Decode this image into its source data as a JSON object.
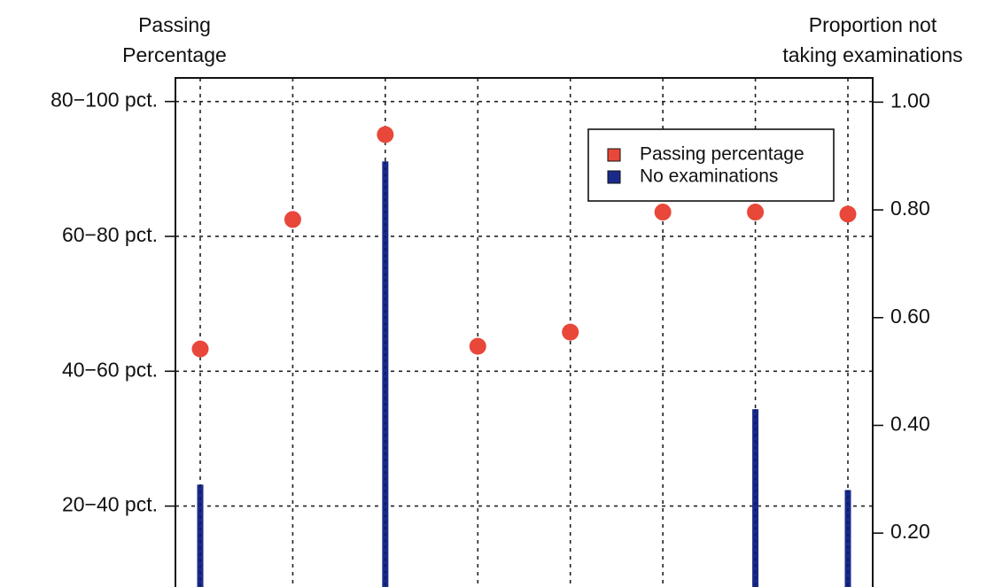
{
  "chart_data": {
    "type": "dual_point_bar",
    "ylabel": [
      "Passing",
      "Percentage"
    ],
    "y2label": [
      "Proportion not",
      "taking examinations"
    ],
    "categories": [
      null,
      null,
      null,
      null,
      null,
      null,
      null,
      null
    ],
    "series": [
      {
        "name": "Passing percentage",
        "color": "#e8473a",
        "type": "point",
        "values": [
          53.3,
          72.5,
          85.1,
          53.7,
          55.8,
          73.6,
          73.6,
          73.3
        ]
      },
      {
        "name": "No examinations",
        "color": "#1a2a8a",
        "type": "bar",
        "axis": "y2",
        "values": [
          0.29,
          null,
          0.89,
          null,
          null,
          null,
          0.43,
          0.28
        ]
      }
    ],
    "ylim": [
      18,
      93.5
    ],
    "yticks": [
      {
        "value": 90,
        "label": "80−100 pct."
      },
      {
        "value": 70,
        "label": "60−80 pct."
      },
      {
        "value": 50,
        "label": "40−60 pct."
      },
      {
        "value": 30,
        "label": "20−40 pct."
      }
    ],
    "y2lim": [
      0.1,
      1.045
    ],
    "y2ticks": [
      {
        "value": 1.0,
        "label": "1.00"
      },
      {
        "value": 0.8,
        "label": "0.80"
      },
      {
        "value": 0.6,
        "label": "0.60"
      },
      {
        "value": 0.4,
        "label": "0.40"
      },
      {
        "value": 0.2,
        "label": "0.20"
      }
    ],
    "grid": true,
    "legend": "top-right"
  }
}
